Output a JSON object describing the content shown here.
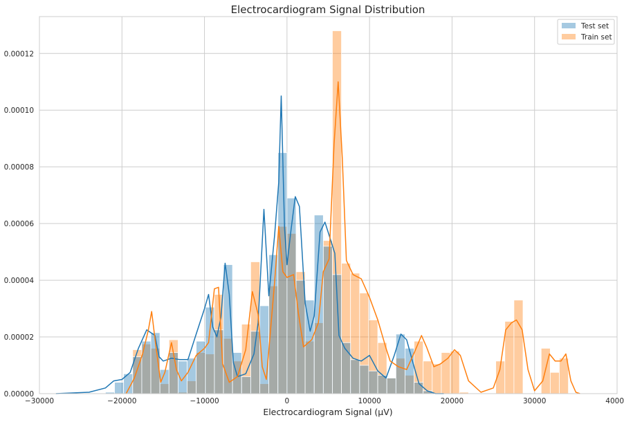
{
  "chart_data": {
    "type": "bar",
    "title": "Electrocardiogram Signal Distribution",
    "xlabel": "Electrocardiogram Signal (µV)",
    "ylabel": "",
    "xlim": [
      -30000,
      40000
    ],
    "ylim": [
      0,
      0.000133
    ],
    "x_ticks": [
      -30000,
      -20000,
      -10000,
      0,
      10000,
      20000,
      30000,
      40000
    ],
    "y_ticks": [
      0,
      2e-05,
      4e-05,
      6e-05,
      8e-05,
      0.0001,
      0.00012
    ],
    "x_tick_labels": [
      "−30000",
      "−20000",
      "−10000",
      "0",
      "10000",
      "20000",
      "30000",
      "40000"
    ],
    "y_tick_labels": [
      "0.00000",
      "0.00002",
      "0.00004",
      "0.00006",
      "0.00008",
      "0.00010",
      "0.00012"
    ],
    "grid": true,
    "legend_position": "top-right",
    "colors": {
      "test_bar": "#1f77b4",
      "train_bar": "#ff7f0e",
      "test_line": "#1f77b4",
      "train_line": "#ff7f0e",
      "grid": "#cccccc",
      "axes": "#cccccc"
    },
    "series": [
      {
        "name": "Test set",
        "bin_width": 1100,
        "bins": [
          {
            "x0": -22000,
            "density": 5e-07
          },
          {
            "x0": -20900,
            "density": 4e-06
          },
          {
            "x0": -19800,
            "density": 7e-06
          },
          {
            "x0": -18700,
            "density": 1.3e-05
          },
          {
            "x0": -17600,
            "density": 1.85e-05
          },
          {
            "x0": -16500,
            "density": 2.15e-05
          },
          {
            "x0": -15400,
            "density": 8.5e-06
          },
          {
            "x0": -14300,
            "density": 1.45e-05
          },
          {
            "x0": -13200,
            "density": 1.15e-05
          },
          {
            "x0": -12100,
            "density": 1.25e-05
          },
          {
            "x0": -11000,
            "density": 1.85e-05
          },
          {
            "x0": -9900,
            "density": 3.05e-05
          },
          {
            "x0": -8800,
            "density": 2.25e-05
          },
          {
            "x0": -7700,
            "density": 4.55e-05
          },
          {
            "x0": -6600,
            "density": 1.45e-05
          },
          {
            "x0": -5500,
            "density": 6e-06
          },
          {
            "x0": -4400,
            "density": 2.2e-05
          },
          {
            "x0": -3300,
            "density": 3.1e-05
          },
          {
            "x0": -2200,
            "density": 4.9e-05
          },
          {
            "x0": -1100,
            "density": 8.5e-05
          },
          {
            "x0": 0,
            "density": 6.9e-05
          },
          {
            "x0": 1100,
            "density": 4e-05
          },
          {
            "x0": 2200,
            "density": 3.3e-05
          },
          {
            "x0": 3300,
            "density": 6.3e-05
          },
          {
            "x0": 4400,
            "density": 5.2e-05
          },
          {
            "x0": 5500,
            "density": 4.2e-05
          },
          {
            "x0": 6600,
            "density": 1.8e-05
          },
          {
            "x0": 7700,
            "density": 1.2e-05
          },
          {
            "x0": 8800,
            "density": 1e-05
          },
          {
            "x0": 9900,
            "density": 8e-06
          },
          {
            "x0": 11000,
            "density": 6.5e-06
          },
          {
            "x0": 12100,
            "density": 5.5e-06
          },
          {
            "x0": 13200,
            "density": 2.1e-05
          },
          {
            "x0": 14300,
            "density": 1.6e-05
          },
          {
            "x0": 15400,
            "density": 4e-06
          },
          {
            "x0": 16500,
            "density": 1e-06
          }
        ],
        "kde": [
          [
            -28000,
            0.0
          ],
          [
            -24000,
            5e-07
          ],
          [
            -22000,
            2e-06
          ],
          [
            -21000,
            4.5e-06
          ],
          [
            -20000,
            5e-06
          ],
          [
            -19000,
            7.5e-06
          ],
          [
            -18000,
            1.6e-05
          ],
          [
            -17000,
            2.25e-05
          ],
          [
            -16000,
            2.05e-05
          ],
          [
            -15500,
            1.3e-05
          ],
          [
            -15000,
            1.15e-05
          ],
          [
            -14000,
            1.25e-05
          ],
          [
            -13000,
            1.2e-05
          ],
          [
            -12000,
            1.2e-05
          ],
          [
            -11000,
            2.1e-05
          ],
          [
            -10000,
            3e-05
          ],
          [
            -9500,
            3.5e-05
          ],
          [
            -9000,
            2.35e-05
          ],
          [
            -8500,
            2e-05
          ],
          [
            -8000,
            2.7e-05
          ],
          [
            -7500,
            4.6e-05
          ],
          [
            -7000,
            3.5e-05
          ],
          [
            -6500,
            1.1e-05
          ],
          [
            -6000,
            6e-06
          ],
          [
            -5000,
            7e-06
          ],
          [
            -4000,
            1.4e-05
          ],
          [
            -3500,
            2.5e-05
          ],
          [
            -2800,
            6.5e-05
          ],
          [
            -2200,
            3.45e-05
          ],
          [
            -1500,
            5.6e-05
          ],
          [
            -1000,
            7.45e-05
          ],
          [
            -700,
            0.000105
          ],
          [
            -300,
            5.85e-05
          ],
          [
            0,
            4.55e-05
          ],
          [
            500,
            5.8e-05
          ],
          [
            1000,
            6.95e-05
          ],
          [
            1500,
            6.6e-05
          ],
          [
            2200,
            3.2e-05
          ],
          [
            2800,
            2.2e-05
          ],
          [
            3300,
            2.75e-05
          ],
          [
            4000,
            5.7e-05
          ],
          [
            4600,
            6.05e-05
          ],
          [
            5200,
            5.5e-05
          ],
          [
            5800,
            4.95e-05
          ],
          [
            6300,
            2.05e-05
          ],
          [
            7000,
            1.6e-05
          ],
          [
            8000,
            1.25e-05
          ],
          [
            9000,
            1.15e-05
          ],
          [
            10000,
            1.35e-05
          ],
          [
            11000,
            8e-06
          ],
          [
            12000,
            5.5e-06
          ],
          [
            13000,
            1.35e-05
          ],
          [
            13800,
            2.1e-05
          ],
          [
            14500,
            1.9e-05
          ],
          [
            15200,
            1.15e-05
          ],
          [
            16000,
            3.5e-06
          ],
          [
            17000,
            1e-06
          ],
          [
            18000,
            0.0
          ],
          [
            19000,
            0.0
          ]
        ]
      },
      {
        "name": "Train set",
        "bin_width": 1100,
        "bins": [
          {
            "x0": -18700,
            "density": 1.55e-05
          },
          {
            "x0": -17600,
            "density": 1.75e-05
          },
          {
            "x0": -16500,
            "density": 1.6e-05
          },
          {
            "x0": -15400,
            "density": 3.5e-06
          },
          {
            "x0": -14300,
            "density": 1.9e-05
          },
          {
            "x0": -13200,
            "density": 5e-07
          },
          {
            "x0": -12100,
            "density": 4.5e-06
          },
          {
            "x0": -11000,
            "density": 1.45e-05
          },
          {
            "x0": -9900,
            "density": 1.4e-05
          },
          {
            "x0": -8800,
            "density": 3.5e-05
          },
          {
            "x0": -7700,
            "density": 1.95e-05
          },
          {
            "x0": -6600,
            "density": 1.15e-05
          },
          {
            "x0": -5500,
            "density": 2.45e-05
          },
          {
            "x0": -4400,
            "density": 4.65e-05
          },
          {
            "x0": -3300,
            "density": 3.5e-06
          },
          {
            "x0": -2200,
            "density": 3.8e-05
          },
          {
            "x0": -1100,
            "density": 5.9e-05
          },
          {
            "x0": 0,
            "density": 5.65e-05
          },
          {
            "x0": 1100,
            "density": 4.3e-05
          },
          {
            "x0": 2200,
            "density": 1.85e-05
          },
          {
            "x0": 3300,
            "density": 2.5e-05
          },
          {
            "x0": 4400,
            "density": 5.4e-05
          },
          {
            "x0": 5500,
            "density": 0.000128
          },
          {
            "x0": 6600,
            "density": 4.6e-05
          },
          {
            "x0": 7700,
            "density": 4.25e-05
          },
          {
            "x0": 8800,
            "density": 3.55e-05
          },
          {
            "x0": 9900,
            "density": 2.6e-05
          },
          {
            "x0": 11000,
            "density": 1.8e-05
          },
          {
            "x0": 12100,
            "density": 5.5e-06
          },
          {
            "x0": 13200,
            "density": 1.25e-05
          },
          {
            "x0": 14300,
            "density": 6.5e-06
          },
          {
            "x0": 15400,
            "density": 1.85e-05
          },
          {
            "x0": 16500,
            "density": 1.15e-05
          },
          {
            "x0": 17600,
            "density": 1.05e-05
          },
          {
            "x0": 18700,
            "density": 1.45e-05
          },
          {
            "x0": 19800,
            "density": 1.5e-05
          },
          {
            "x0": 20900,
            "density": 5e-07
          },
          {
            "x0": 25300,
            "density": 1.15e-05
          },
          {
            "x0": 26400,
            "density": 2.55e-05
          },
          {
            "x0": 27500,
            "density": 3.3e-05
          },
          {
            "x0": 30800,
            "density": 1.6e-05
          },
          {
            "x0": 31900,
            "density": 7.5e-06
          },
          {
            "x0": 33000,
            "density": 1.25e-05
          }
        ],
        "kde": [
          [
            -19500,
            0.0
          ],
          [
            -18500,
            5.5e-06
          ],
          [
            -17500,
            1.4e-05
          ],
          [
            -16800,
            2.25e-05
          ],
          [
            -16400,
            2.9e-05
          ],
          [
            -15900,
            1.7e-05
          ],
          [
            -15300,
            4e-06
          ],
          [
            -14800,
            7.5e-06
          ],
          [
            -14000,
            1.8e-05
          ],
          [
            -13400,
            8.5e-06
          ],
          [
            -12800,
            4.5e-06
          ],
          [
            -12000,
            7.5e-06
          ],
          [
            -11000,
            1.35e-05
          ],
          [
            -10000,
            1.6e-05
          ],
          [
            -9500,
            1.8e-05
          ],
          [
            -8800,
            3.7e-05
          ],
          [
            -8300,
            3.75e-05
          ],
          [
            -7800,
            1.05e-05
          ],
          [
            -7000,
            4e-06
          ],
          [
            -6000,
            6e-06
          ],
          [
            -5000,
            1.55e-05
          ],
          [
            -4200,
            3.6e-05
          ],
          [
            -3500,
            2.8e-05
          ],
          [
            -3000,
            9.5e-06
          ],
          [
            -2500,
            5e-06
          ],
          [
            -1500,
            3.95e-05
          ],
          [
            -1000,
            5.9e-05
          ],
          [
            -500,
            4.3e-05
          ],
          [
            0,
            4.1e-05
          ],
          [
            800,
            4.2e-05
          ],
          [
            1400,
            2.8e-05
          ],
          [
            2000,
            1.65e-05
          ],
          [
            3000,
            1.9e-05
          ],
          [
            3800,
            2.5e-05
          ],
          [
            4400,
            4.3e-05
          ],
          [
            5100,
            4.75e-05
          ],
          [
            5700,
            8.8e-05
          ],
          [
            6200,
            0.00011
          ],
          [
            6700,
            8.3e-05
          ],
          [
            7200,
            4.7e-05
          ],
          [
            8000,
            4.2e-05
          ],
          [
            9000,
            4.05e-05
          ],
          [
            10000,
            3.4e-05
          ],
          [
            11000,
            2.6e-05
          ],
          [
            12000,
            1.6e-05
          ],
          [
            12500,
            1.15e-05
          ],
          [
            13500,
            9.5e-06
          ],
          [
            14500,
            8.5e-06
          ],
          [
            15500,
            1.5e-05
          ],
          [
            16300,
            2.05e-05
          ],
          [
            16900,
            1.65e-05
          ],
          [
            17800,
            9.5e-06
          ],
          [
            18600,
            1.05e-05
          ],
          [
            19500,
            1.25e-05
          ],
          [
            20300,
            1.55e-05
          ],
          [
            21000,
            1.35e-05
          ],
          [
            22000,
            4.5e-06
          ],
          [
            23500,
            5e-07
          ],
          [
            25000,
            2e-06
          ],
          [
            25800,
            8.5e-06
          ],
          [
            26500,
            2.25e-05
          ],
          [
            27200,
            2.5e-05
          ],
          [
            27800,
            2.6e-05
          ],
          [
            28500,
            2.25e-05
          ],
          [
            29200,
            8.5e-06
          ],
          [
            30000,
            1e-06
          ],
          [
            31000,
            4.5e-06
          ],
          [
            31800,
            1.4e-05
          ],
          [
            32500,
            1.15e-05
          ],
          [
            33200,
            1.15e-05
          ],
          [
            33800,
            1.4e-05
          ],
          [
            34400,
            4.5e-06
          ],
          [
            35000,
            5e-07
          ],
          [
            35500,
            0.0
          ]
        ]
      }
    ]
  }
}
